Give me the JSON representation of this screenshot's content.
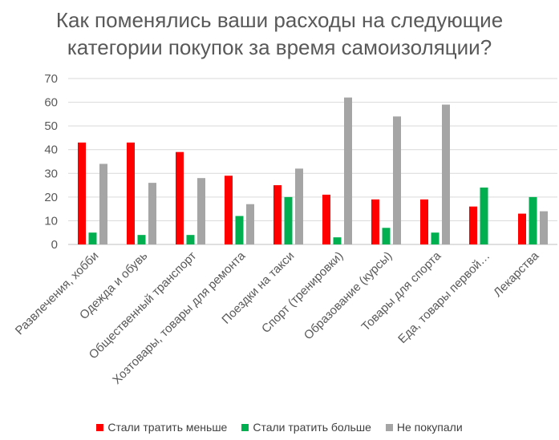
{
  "chart_data": {
    "type": "bar",
    "title_lines": [
      "Как поменялись ваши расходы на следующие",
      "категории покупок за время самоизоляции?"
    ],
    "categories": [
      "Развлечения, хобби",
      "Одежда и обувь",
      "Общественный транспорт",
      "Хозтовары, товары для ремонта",
      "Поездки на такси",
      "Спорт (тренировки)",
      "Образование (курсы)",
      "Товары для спорта",
      "Еда, товары первой…",
      "Лекарства"
    ],
    "series": [
      {
        "name": "Стали тратить меньше",
        "color": "#ff0000",
        "values": [
          43,
          43,
          39,
          29,
          25,
          21,
          19,
          19,
          16,
          13
        ]
      },
      {
        "name": "Стали тратить больше",
        "color": "#00b050",
        "values": [
          5,
          4,
          4,
          12,
          20,
          3,
          7,
          5,
          24,
          20
        ]
      },
      {
        "name": "Не покупали",
        "color": "#a5a5a5",
        "values": [
          34,
          26,
          28,
          17,
          32,
          62,
          54,
          59,
          0,
          14
        ]
      }
    ],
    "ylim": [
      0,
      70
    ],
    "yticks": [
      0,
      10,
      20,
      30,
      40,
      50,
      60,
      70
    ],
    "grid": true,
    "legend": "bottom"
  }
}
